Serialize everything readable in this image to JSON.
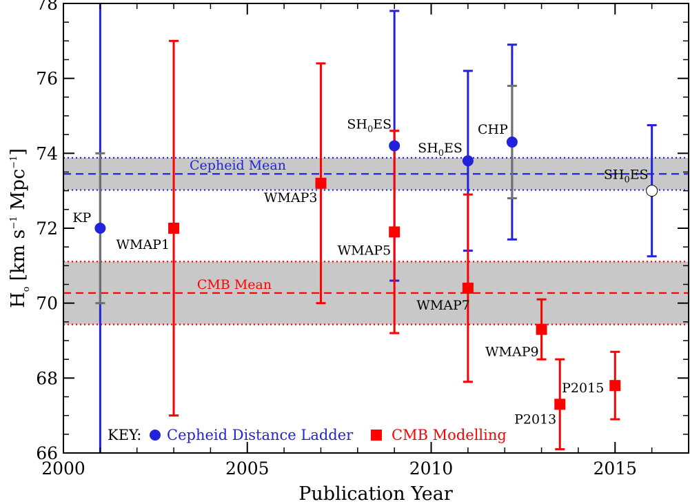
{
  "chart_data": {
    "type": "scatter",
    "xlabel": "Publication Year",
    "ylabel": "H",
    "ylabel_subscript": "o",
    "ylabel_units": "[km s",
    "ylabel_units_exp": "−1",
    "ylabel_units_tail": " Mpc",
    "ylabel_units_tail_exp": "−1",
    "ylabel_close": "]",
    "xlim": [
      2000,
      2017
    ],
    "ylim": [
      66,
      78
    ],
    "xticks": [
      2000,
      2005,
      2010,
      2015
    ],
    "xtick_labels": [
      "2000",
      "2005",
      "2010",
      "2015"
    ],
    "yticks": [
      66,
      68,
      70,
      72,
      74,
      76,
      78
    ],
    "ytick_labels": [
      "66",
      "68",
      "70",
      "72",
      "74",
      "76",
      "78"
    ],
    "grid": false,
    "bands": [
      {
        "name": "Cepheid Mean",
        "mean": 73.45,
        "low": 73.02,
        "high": 73.88,
        "color": "#2222dd"
      },
      {
        "name": "CMB Mean",
        "mean": 70.27,
        "low": 69.43,
        "high": 71.11,
        "color": "#ff0000"
      }
    ],
    "series": [
      {
        "name": "Cepheid Distance Ladder",
        "color": "#2222dd",
        "marker": "circle",
        "points": [
          {
            "label": "KP",
            "x": 2001.0,
            "y": 72.0,
            "err_low": 66.0,
            "err_high": 78.0,
            "sys_low": 70.0,
            "sys_high": 74.0
          },
          {
            "label": "SH",
            "label_sub": "0",
            "label_tail": "ES",
            "x": 2009.0,
            "y": 74.2,
            "err_low": 70.6,
            "err_high": 77.8
          },
          {
            "label": "SH",
            "label_sub": "0",
            "label_tail": "ES",
            "x": 2011.0,
            "y": 73.8,
            "err_low": 71.4,
            "err_high": 76.2
          },
          {
            "label": "CHP",
            "x": 2012.2,
            "y": 74.3,
            "err_low": 71.7,
            "err_high": 76.9,
            "sys_low": 72.8,
            "sys_high": 75.8
          },
          {
            "label": "SH",
            "label_sub": "0",
            "label_tail": "ES",
            "x": 2016.0,
            "y": 73.0,
            "err_low": 71.25,
            "err_high": 74.75,
            "open": true
          }
        ]
      },
      {
        "name": "CMB Modelling",
        "color": "#ff0000",
        "marker": "square",
        "points": [
          {
            "label": "WMAP1",
            "x": 2003.0,
            "y": 72.0,
            "err_low": 67.0,
            "err_high": 77.0
          },
          {
            "label": "WMAP3",
            "x": 2007.0,
            "y": 73.2,
            "err_low": 70.0,
            "err_high": 76.4
          },
          {
            "label": "WMAP5",
            "x": 2009.0,
            "y": 71.9,
            "err_low": 69.2,
            "err_high": 74.6
          },
          {
            "label": "WMAP7",
            "x": 2011.0,
            "y": 70.4,
            "err_low": 67.9,
            "err_high": 72.9
          },
          {
            "label": "WMAP9",
            "x": 2013.0,
            "y": 69.3,
            "err_low": 68.5,
            "err_high": 70.1
          },
          {
            "label": "P2013",
            "x": 2013.5,
            "y": 67.3,
            "err_low": 66.1,
            "err_high": 68.5
          },
          {
            "label": "P2015",
            "x": 2015.0,
            "y": 67.8,
            "err_low": 66.9,
            "err_high": 68.7
          }
        ]
      }
    ],
    "key": {
      "label": "KEY:",
      "entries": [
        "Cepheid Distance Ladder",
        "CMB Modelling"
      ]
    }
  },
  "colors": {
    "band_fill": "#c8c8c8",
    "systematic": "#707070"
  }
}
